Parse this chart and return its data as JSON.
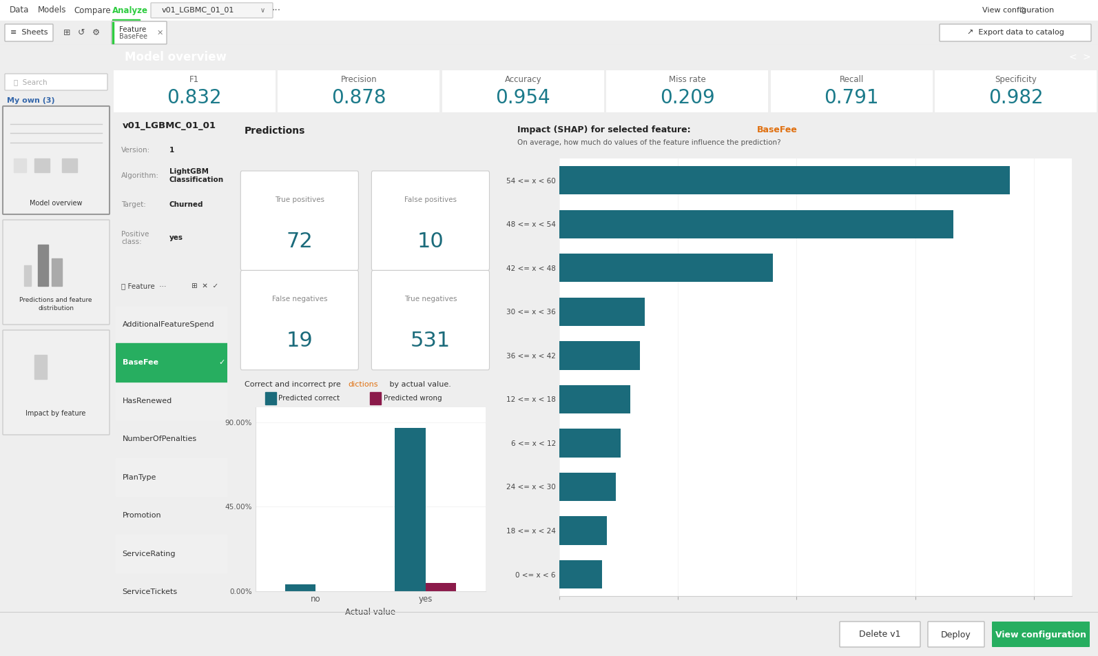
{
  "title": "Model overview",
  "model_name": "v01_LGBMC_01_01",
  "version": "1",
  "algorithm": "LightGBM\nClassification",
  "target": "Churned",
  "positive_class": "yes",
  "metrics": {
    "F1": "0.832",
    "Precision": "0.878",
    "Accuracy": "0.954",
    "Miss rate": "0.209",
    "Recall": "0.791",
    "Specificity": "0.982"
  },
  "confusion": [
    [
      "True positives",
      72
    ],
    [
      "False positives",
      10
    ],
    [
      "False negatives",
      19
    ],
    [
      "True negatives",
      531
    ]
  ],
  "bar_chart_title_plain": "Correct and incorrect predictions by actual value.",
  "bar_chart_title_colored": "tions",
  "bar_correct": [
    0.036,
    0.87
  ],
  "bar_wrong": [
    0.0005,
    0.045
  ],
  "bar_categories": [
    "no",
    "yes"
  ],
  "bar_yticks": [
    0.0,
    0.45,
    0.9
  ],
  "bar_ytick_labels": [
    "0.00%",
    "45.00%",
    "90.00%"
  ],
  "bar_xlabel": "Actual value",
  "legend_correct": "Predicted correct",
  "legend_wrong": "Predicted wrong",
  "color_correct": "#1B6B7B",
  "color_wrong": "#8B1A4A",
  "shap_title_prefix": "Impact (SHAP) for selected feature:",
  "shap_title_feature": "BaseFee",
  "shap_subtitle": "On average, how much do values of the feature influence the prediction?",
  "shap_labels": [
    "54 <= x < 60",
    "48 <= x < 54",
    "42 <= x < 48",
    "30 <= x < 36",
    "36 <= x < 42",
    "12 <= x < 18",
    "6 <= x < 12",
    "24 <= x < 30",
    "18 <= x < 24",
    "0 <= x < 6"
  ],
  "shap_values": [
    0.95,
    0.83,
    0.45,
    0.18,
    0.17,
    0.15,
    0.13,
    0.12,
    0.1,
    0.09
  ],
  "shap_color": "#1B6B7B",
  "features": [
    "AdditionalFeatureSpend",
    "BaseFee",
    "HasRenewed",
    "NumberOfPenalties",
    "PlanType",
    "Promotion",
    "ServiceRating",
    "ServiceTickets"
  ],
  "selected_feature": "BaseFee",
  "color_green": "#2ECC40",
  "color_nav_underline": "#2ECC40",
  "color_title_bg": "#8a8a8a",
  "color_sidebar_bg": "#f4f4f4",
  "color_main_bg": "#ffffff",
  "color_border": "#cccccc",
  "color_metric_val": "#1B7A8A",
  "color_teal": "#1B6B7B"
}
